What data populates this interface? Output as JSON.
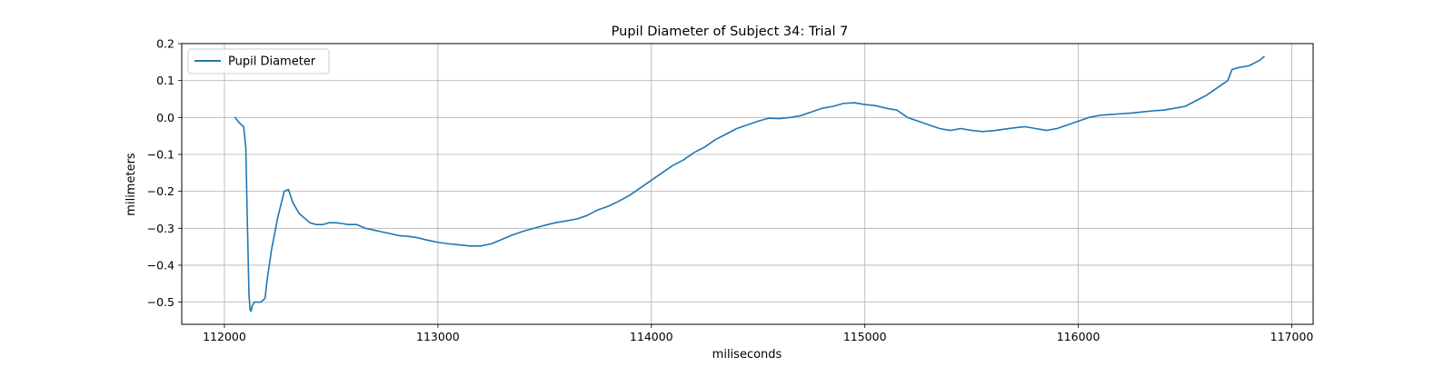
{
  "chart_data": {
    "type": "line",
    "title": "Pupil Diameter of Subject 34: Trial 7",
    "xlabel": "miliseconds",
    "ylabel": "milimeters",
    "xlim": [
      111800,
      117100
    ],
    "ylim": [
      -0.56,
      0.2
    ],
    "x_ticks": [
      112000,
      113000,
      114000,
      115000,
      116000,
      117000
    ],
    "x_tick_labels": [
      "112000",
      "113000",
      "114000",
      "115000",
      "116000",
      "117000"
    ],
    "y_ticks": [
      0.2,
      0.1,
      0.0,
      -0.1,
      -0.2,
      -0.3,
      -0.4,
      -0.5
    ],
    "y_tick_labels": [
      "0.2",
      "0.1",
      "0.0",
      "−0.1",
      "−0.2",
      "−0.3",
      "−0.4",
      "−0.5"
    ],
    "grid": true,
    "legend_position": "top-left",
    "series": [
      {
        "name": "Pupil Diameter",
        "color": "#1f77b4",
        "x": [
          112050,
          112070,
          112090,
          112100,
          112108,
          112115,
          112120,
          112125,
          112130,
          112140,
          112150,
          112170,
          112190,
          112200,
          112220,
          112250,
          112280,
          112300,
          112320,
          112350,
          112380,
          112400,
          112430,
          112460,
          112490,
          112520,
          112550,
          112580,
          112620,
          112660,
          112700,
          112740,
          112780,
          112820,
          112860,
          112900,
          112950,
          113000,
          113050,
          113100,
          113150,
          113200,
          113250,
          113300,
          113350,
          113400,
          113450,
          113500,
          113550,
          113600,
          113650,
          113700,
          113750,
          113800,
          113850,
          113900,
          113950,
          114000,
          114050,
          114100,
          114150,
          114200,
          114250,
          114300,
          114350,
          114400,
          114450,
          114500,
          114550,
          114600,
          114650,
          114700,
          114750,
          114800,
          114850,
          114900,
          114950,
          115000,
          115050,
          115100,
          115150,
          115200,
          115250,
          115300,
          115350,
          115400,
          115450,
          115500,
          115550,
          115600,
          115650,
          115700,
          115750,
          115800,
          115850,
          115900,
          115950,
          116000,
          116050,
          116100,
          116150,
          116200,
          116250,
          116300,
          116350,
          116400,
          116450,
          116500,
          116550,
          116600,
          116650,
          116700,
          116720,
          116750,
          116800,
          116850,
          116870
        ],
        "values": [
          0.0,
          -0.015,
          -0.025,
          -0.08,
          -0.3,
          -0.48,
          -0.52,
          -0.525,
          -0.51,
          -0.5,
          -0.5,
          -0.5,
          -0.49,
          -0.44,
          -0.36,
          -0.27,
          -0.2,
          -0.195,
          -0.23,
          -0.26,
          -0.275,
          -0.285,
          -0.29,
          -0.29,
          -0.285,
          -0.285,
          -0.287,
          -0.29,
          -0.29,
          -0.3,
          -0.305,
          -0.31,
          -0.315,
          -0.32,
          -0.322,
          -0.325,
          -0.332,
          -0.338,
          -0.342,
          -0.345,
          -0.348,
          -0.348,
          -0.342,
          -0.33,
          -0.318,
          -0.308,
          -0.3,
          -0.292,
          -0.285,
          -0.28,
          -0.275,
          -0.265,
          -0.25,
          -0.24,
          -0.226,
          -0.21,
          -0.19,
          -0.17,
          -0.15,
          -0.13,
          -0.115,
          -0.095,
          -0.08,
          -0.06,
          -0.045,
          -0.03,
          -0.02,
          -0.01,
          -0.002,
          -0.003,
          0.0,
          0.005,
          0.015,
          0.025,
          0.03,
          0.038,
          0.04,
          0.035,
          0.032,
          0.025,
          0.02,
          0.0,
          -0.01,
          -0.02,
          -0.03,
          -0.035,
          -0.03,
          -0.035,
          -0.038,
          -0.036,
          -0.032,
          -0.028,
          -0.025,
          -0.03,
          -0.035,
          -0.03,
          -0.02,
          -0.01,
          0.0,
          0.006,
          0.008,
          0.01,
          0.012,
          0.015,
          0.018,
          0.02,
          0.025,
          0.03,
          0.045,
          0.06,
          0.08,
          0.1,
          0.13,
          0.135,
          0.14,
          0.155,
          0.165
        ]
      }
    ]
  }
}
